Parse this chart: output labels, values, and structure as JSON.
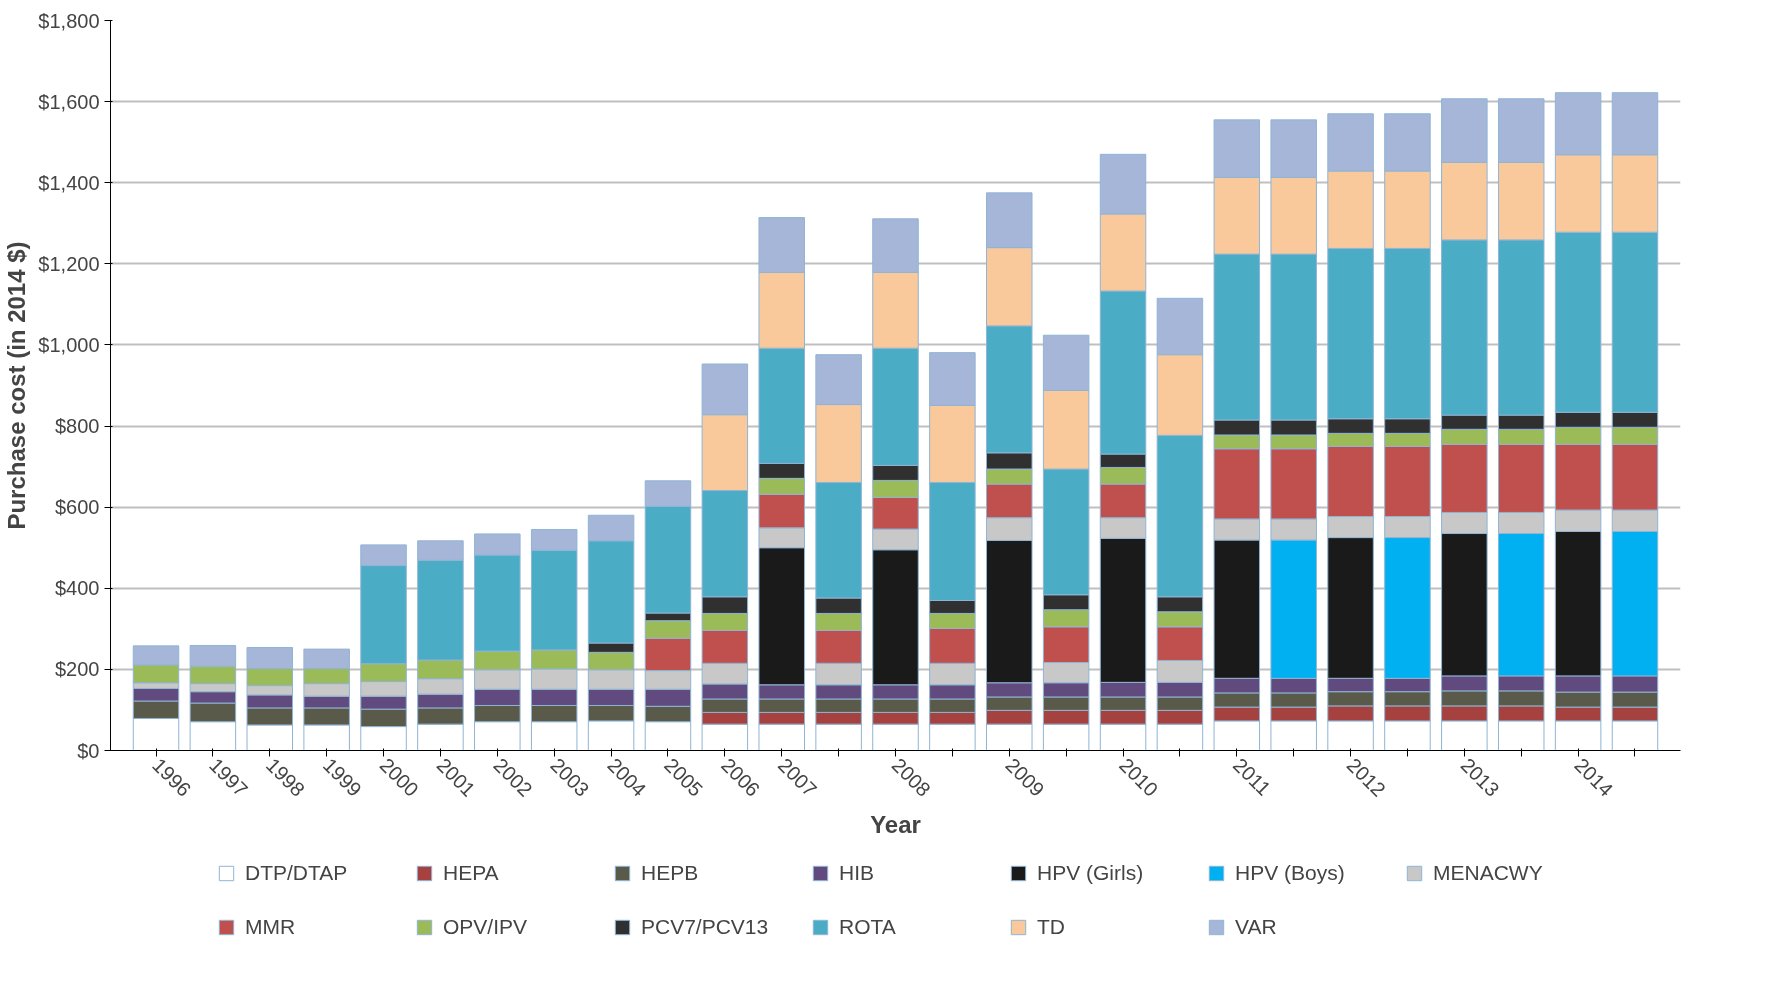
{
  "chart_data": {
    "type": "bar",
    "stacked": true,
    "xlabel": "Year",
    "ylabel": "Purchase cost (in 2014 $)",
    "categories": [
      "1996",
      "1997",
      "1998",
      "1999",
      "2000",
      "2001",
      "2002",
      "2003",
      "2004",
      "2005",
      "2006",
      "2007",
      null,
      "2008",
      null,
      "2009",
      null,
      "2010",
      null,
      "2011",
      null,
      "2012",
      null,
      "2013",
      null,
      "2014",
      null
    ],
    "ylim": [
      0,
      1800
    ],
    "yticks": [
      {
        "value": 0,
        "label": "$0"
      },
      {
        "value": 200,
        "label": "$200"
      },
      {
        "value": 400,
        "label": "$400"
      },
      {
        "value": 600,
        "label": "$600"
      },
      {
        "value": 800,
        "label": "$800"
      },
      {
        "value": 1000,
        "label": "$1,000"
      },
      {
        "value": 1200,
        "label": "$1,200"
      },
      {
        "value": 1400,
        "label": "$1,400"
      },
      {
        "value": 1600,
        "label": "$1,600"
      },
      {
        "value": 1800,
        "label": "$1,800"
      }
    ],
    "grid": "y",
    "legend": "bottom",
    "series": [
      {
        "name": "DTP/DTAP",
        "color": "#ffffff",
        "values": [
          79,
          71,
          63,
          63,
          59,
          65,
          71,
          71,
          73,
          71,
          65,
          65,
          65,
          65,
          65,
          65,
          65,
          65,
          65,
          73,
          73,
          73,
          73,
          73,
          73,
          73,
          73
        ]
      },
      {
        "name": "HEPA",
        "color": "#a5413e",
        "values": [
          null,
          null,
          null,
          null,
          null,
          null,
          null,
          null,
          null,
          null,
          29,
          29,
          29,
          29,
          29,
          34,
          34,
          34,
          34,
          34,
          34,
          37,
          37,
          37,
          37,
          34,
          34
        ]
      },
      {
        "name": "HEPB",
        "color": "#5a5a4a",
        "values": [
          43,
          46,
          42,
          42,
          43,
          40,
          40,
          40,
          38,
          38,
          33,
          33,
          33,
          33,
          33,
          33,
          33,
          33,
          33,
          35,
          35,
          35,
          35,
          37,
          37,
          37,
          37
        ]
      },
      {
        "name": "HIB",
        "color": "#614a7d",
        "values": [
          31,
          28,
          32,
          29,
          32,
          34,
          40,
          40,
          40,
          42,
          37,
          35,
          35,
          35,
          35,
          35,
          35,
          36,
          36,
          36,
          36,
          33,
          33,
          37,
          37,
          40,
          40
        ]
      },
      {
        "name": "HPV (Girls)",
        "color": "#1a1a1a",
        "values": [
          null,
          null,
          null,
          null,
          null,
          null,
          null,
          null,
          null,
          null,
          null,
          338,
          null,
          333,
          null,
          351,
          null,
          355,
          null,
          341,
          null,
          347,
          null,
          351,
          null,
          356,
          null
        ]
      },
      {
        "name": "HPV (Boys)",
        "color": "#00b0f0",
        "values": [
          null,
          null,
          null,
          null,
          null,
          null,
          null,
          null,
          null,
          null,
          null,
          null,
          null,
          null,
          null,
          null,
          null,
          null,
          null,
          null,
          341,
          null,
          347,
          null,
          351,
          null,
          356
        ]
      },
      {
        "name": "MENACWY",
        "color": "#c8c8c8",
        "values": [
          14,
          20,
          23,
          31,
          36,
          38,
          48,
          50,
          48,
          46,
          51,
          49,
          53,
          51,
          53,
          56,
          50,
          51,
          54,
          52,
          52,
          52,
          52,
          52,
          52,
          53,
          53
        ]
      },
      {
        "name": "MMR",
        "color": "#c0504d",
        "values": [
          null,
          null,
          null,
          null,
          null,
          null,
          null,
          null,
          null,
          80,
          81,
          83,
          81,
          78,
          86,
          83,
          88,
          83,
          83,
          173,
          173,
          173,
          173,
          168,
          168,
          162,
          162
        ]
      },
      {
        "name": "OPV/IPV",
        "color": "#9bbb59",
        "values": [
          44,
          43,
          42,
          37,
          44,
          46,
          46,
          47,
          43,
          43,
          42,
          39,
          42,
          42,
          37,
          37,
          42,
          41,
          37,
          34,
          34,
          32,
          32,
          37,
          37,
          42,
          42
        ]
      },
      {
        "name": "PCV7/PCV13",
        "color": "#303030",
        "values": [
          null,
          null,
          null,
          null,
          null,
          null,
          null,
          null,
          23,
          19,
          41,
          37,
          38,
          37,
          32,
          40,
          37,
          33,
          37,
          37,
          37,
          36,
          36,
          35,
          35,
          37,
          37
        ]
      },
      {
        "name": "ROTA",
        "color": "#4bacc6",
        "values": [
          null,
          null,
          null,
          null,
          242,
          246,
          237,
          246,
          252,
          263,
          262,
          284,
          285,
          289,
          291,
          313,
          310,
          402,
          398,
          409,
          409,
          420,
          420,
          432,
          432,
          444,
          444
        ]
      },
      {
        "name": "TD",
        "color": "#f9c89b",
        "values": [
          null,
          null,
          null,
          null,
          null,
          null,
          null,
          null,
          null,
          null,
          187,
          187,
          192,
          187,
          190,
          193,
          194,
          190,
          199,
          189,
          189,
          191,
          191,
          191,
          191,
          191,
          191
        ]
      },
      {
        "name": "VAR",
        "color": "#a6b6d8",
        "values": [
          47,
          51,
          52,
          48,
          51,
          48,
          52,
          51,
          63,
          63,
          125,
          135,
          123,
          132,
          130,
          135,
          136,
          147,
          139,
          142,
          142,
          141,
          141,
          157,
          157,
          153,
          153
        ]
      }
    ]
  }
}
